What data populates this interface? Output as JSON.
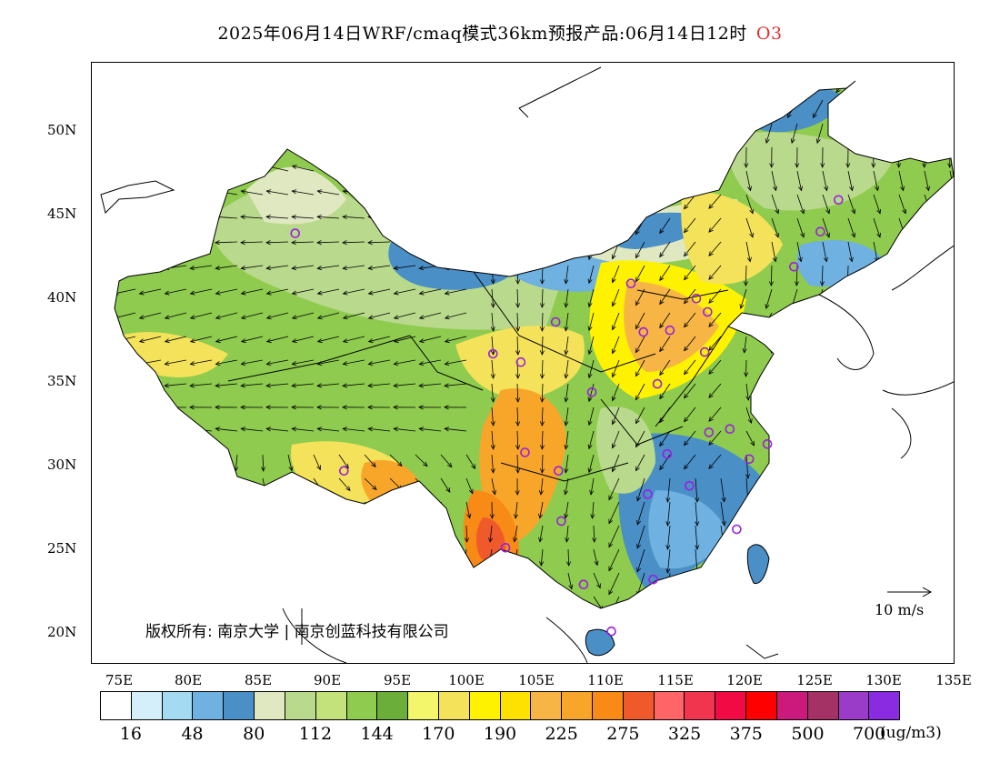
{
  "title": {
    "main": "2025年06月14日WRF/cmaq模式36km预报产品:06月14日12时",
    "species": "O3"
  },
  "axes": {
    "lat_labels": [
      "50N",
      "45N",
      "40N",
      "35N",
      "30N",
      "25N",
      "20N"
    ],
    "lon_labels": [
      "75E",
      "80E",
      "85E",
      "90E",
      "95E",
      "100E",
      "105E",
      "110E",
      "115E",
      "120E",
      "125E",
      "130E",
      "135E"
    ]
  },
  "copyright": "版权所有: 南京大学 | 南京创蓝科技有限公司",
  "wind_reference": "10 m/s",
  "colorbar": {
    "colors": [
      "#ffffff",
      "#d4eefa",
      "#a4daf2",
      "#6fb1e0",
      "#4a8fc6",
      "#dfe8c0",
      "#b9d98c",
      "#c4e27c",
      "#8ecb4e",
      "#6bae3a",
      "#f3f56a",
      "#f3e25a",
      "#fff200",
      "#ffe100",
      "#f6b545",
      "#f8a62a",
      "#f88a16",
      "#f05a2a",
      "#ff6466",
      "#f2354e",
      "#f20a44",
      "#ff0000",
      "#cc197c",
      "#a53264",
      "#9b3cc8",
      "#8a2be2"
    ],
    "tick_labels": [
      "16",
      "48",
      "80",
      "112",
      "144",
      "170",
      "190",
      "225",
      "275",
      "325",
      "375",
      "500",
      "700"
    ],
    "unit": "(ug/m3)"
  },
  "map": {
    "lon_range": [
      73,
      135
    ],
    "lat_range": [
      18,
      54
    ],
    "stations": [
      [
        87.6,
        43.8
      ],
      [
        101.8,
        36.6
      ],
      [
        103.8,
        36.1
      ],
      [
        106.3,
        38.5
      ],
      [
        111.7,
        40.8
      ],
      [
        112.6,
        37.9
      ],
      [
        114.5,
        38.0
      ],
      [
        116.4,
        39.9
      ],
      [
        117.2,
        39.1
      ],
      [
        117.0,
        36.7
      ],
      [
        113.6,
        34.8
      ],
      [
        108.9,
        34.3
      ],
      [
        104.1,
        30.7
      ],
      [
        106.5,
        29.6
      ],
      [
        91.1,
        29.6
      ],
      [
        106.7,
        26.6
      ],
      [
        102.7,
        25.0
      ],
      [
        108.3,
        22.8
      ],
      [
        110.3,
        20.0
      ],
      [
        113.3,
        23.1
      ],
      [
        112.9,
        28.2
      ],
      [
        115.9,
        28.7
      ],
      [
        114.3,
        30.6
      ],
      [
        117.3,
        31.9
      ],
      [
        118.8,
        32.1
      ],
      [
        120.2,
        30.3
      ],
      [
        121.5,
        31.2
      ],
      [
        119.3,
        26.1
      ],
      [
        123.4,
        41.8
      ],
      [
        125.3,
        43.9
      ],
      [
        126.6,
        45.8
      ]
    ]
  }
}
